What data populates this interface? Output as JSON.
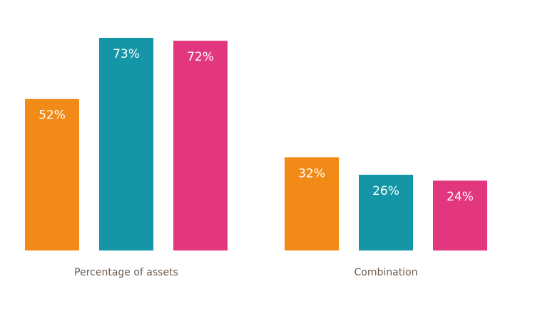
{
  "chart_data": {
    "type": "bar",
    "categories": [
      "Percentage of assets",
      "Combination"
    ],
    "series": [
      {
        "values": [
          52,
          32
        ],
        "color": "#f28a17"
      },
      {
        "values": [
          73,
          26
        ],
        "color": "#1596a6"
      },
      {
        "values": [
          72,
          24
        ],
        "color": "#e2377e"
      }
    ],
    "value_suffix": "%",
    "title": "",
    "xlabel": "",
    "ylabel": "",
    "ylim": [
      0,
      73
    ],
    "grid": false,
    "legend": "none"
  }
}
